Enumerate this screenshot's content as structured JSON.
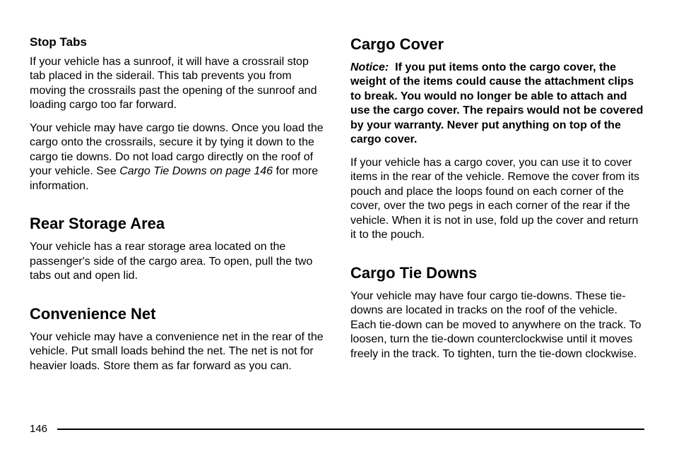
{
  "left": {
    "stopTabs": {
      "heading": "Stop Tabs",
      "p1": "If your vehicle has a sunroof, it will have a crossrail stop tab placed in the siderail. This tab prevents you from moving the crossrails past the opening of the sunroof and loading cargo too far forward.",
      "p2a": "Your vehicle may have cargo tie downs. Once you load the cargo onto the crossrails, secure it by tying it down to the cargo tie downs. Do not load cargo directly on the roof of your vehicle. See ",
      "p2ref": "Cargo Tie Downs on page 146",
      "p2b": " for more information."
    },
    "rearStorage": {
      "heading": "Rear Storage Area",
      "p1": "Your vehicle has a rear storage area located on the passenger's side of the cargo area. To open, pull the two tabs out and open lid."
    },
    "convNet": {
      "heading": "Convenience Net",
      "p1": "Your vehicle may have a convenience net in the rear of the vehicle. Put small loads behind the net. The net is not for heavier loads. Store them as far forward as you can."
    }
  },
  "right": {
    "cargoCover": {
      "heading": "Cargo Cover",
      "noticeLabel": "Notice:",
      "noticeBody": "If you put items onto the cargo cover, the weight of the items could cause the attachment clips to break. You would no longer be able to attach and use the cargo cover. The repairs would not be covered by your warranty. Never put anything on top of the cargo cover.",
      "p1": "If your vehicle has a cargo cover, you can use it to cover items in the rear of the vehicle. Remove the cover from its pouch and place the loops found on each corner of the cover, over the two pegs in each corner of the rear if the vehicle. When it is not in use, fold up the cover and return it to the pouch."
    },
    "cargoTieDowns": {
      "heading": "Cargo Tie Downs",
      "p1": "Your vehicle may have four cargo tie-downs. These tie-downs are located in tracks on the roof of the vehicle. Each tie-down can be moved to anywhere on the track. To loosen, turn the tie-down counterclockwise until it moves freely in the track. To tighten, turn the tie-down clockwise."
    }
  },
  "pageNumber": "146"
}
